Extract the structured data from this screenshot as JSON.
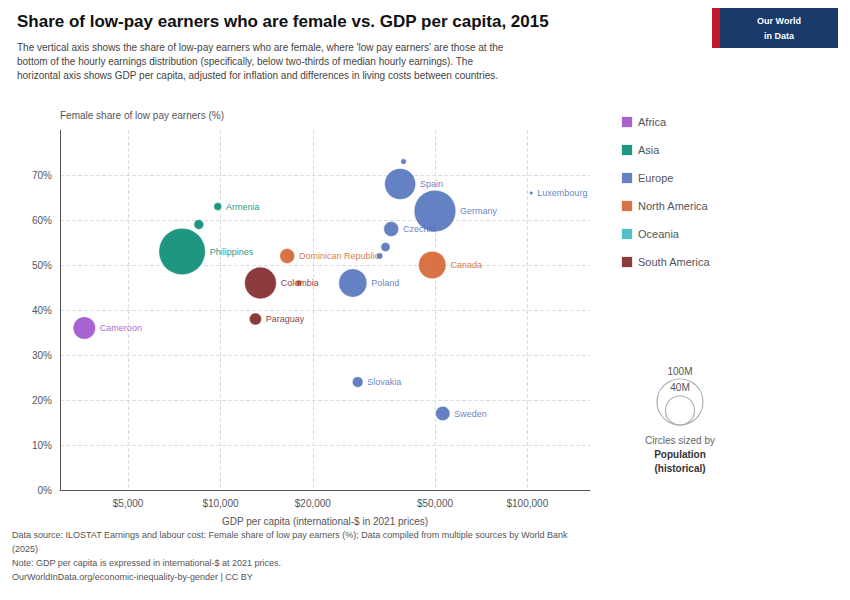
{
  "chart_data": {
    "type": "scatter",
    "title": "Share of low-pay earners who are female vs. GDP per capita, 2015",
    "subtitle": [
      "The vertical axis shows the share of low-pay earners who are female, where 'low pay earners' are those at the",
      "bottom of the hourly earnings distribution (specifically, below two-thirds of median hourly earnings). The",
      "horizontal axis shows GDP per capita, adjusted for inflation and differences in living costs between countries."
    ],
    "xlabel": "GDP per capita (international-$ in 2021 prices)",
    "ylabel": "Female share of low pay earners (%)",
    "footnotes": [
      "Data source: ILOSTAT Earnings and labour cost: Female share of low pay earners (%); Data compiled from multiple sources by World Bank",
      "(2025)",
      "Note: GDP per capita is expressed in international-$ at 2021 prices.",
      "OurWorldInData.org/economic-inequality-by-gender | CC BY"
    ],
    "log": "x",
    "grid": true,
    "legend": "right",
    "xlim": [
      3000,
      160000
    ],
    "xticks": [
      {
        "value": 5000,
        "label": "$5,000"
      },
      {
        "value": 10000,
        "label": "$10,000"
      },
      {
        "value": 20000,
        "label": "$20,000"
      },
      {
        "value": 50000,
        "label": "$50,000"
      },
      {
        "value": 100000,
        "label": "$100,000"
      }
    ],
    "ylim": [
      0,
      80
    ],
    "yticks": [
      {
        "value": 0,
        "label": "0%"
      },
      {
        "value": 10,
        "label": "10%"
      },
      {
        "value": 20,
        "label": "20%"
      },
      {
        "value": 30,
        "label": "30%"
      },
      {
        "value": 40,
        "label": "40%"
      },
      {
        "value": 50,
        "label": "50%"
      },
      {
        "value": 60,
        "label": "60%"
      },
      {
        "value": 70,
        "label": "70%"
      }
    ],
    "series": [
      {
        "name": "Africa",
        "color": "#9b4dca",
        "x": [
          3600
        ],
        "values": [
          36
        ],
        "sizes": [
          24000000
        ],
        "labels": [
          "Cameroon"
        ]
      },
      {
        "name": "Asia",
        "color": "#00896e",
        "x": [
          9800,
          7500,
          8500
        ],
        "values": [
          63,
          53,
          59
        ],
        "sizes": [
          3000000,
          102000000,
          4500000
        ],
        "labels": [
          "Armenia",
          "Philippines",
          null
        ]
      },
      {
        "name": "Europe",
        "color": "#4e6fbc",
        "x": [
          27000,
          28000,
          38500,
          36000,
          50000,
          53000,
          103000,
          39500,
          34500,
          33000
        ],
        "values": [
          46,
          24,
          68,
          58,
          62,
          17,
          66,
          73,
          54,
          52
        ],
        "sizes": [
          38000000,
          5400000,
          46000000,
          10600000,
          82000000,
          9900000,
          580000,
          1500000,
          4000000,
          2000000
        ],
        "labels": [
          "Poland",
          "Slovakia",
          "Spain",
          "Czechia",
          "Germany",
          "Sweden",
          "Luxembourg",
          null,
          null,
          null
        ]
      },
      {
        "name": "North America",
        "color": "#d45f2a",
        "x": [
          16500,
          49000,
          18000
        ],
        "values": [
          52,
          50,
          46
        ],
        "sizes": [
          10500000,
          36000000,
          2000000
        ],
        "labels": [
          "Dominican Republic",
          "Canada",
          null
        ]
      },
      {
        "name": "Oceania",
        "color": "#3ab5c0",
        "x": [],
        "values": [],
        "sizes": [],
        "labels": []
      },
      {
        "name": "South America",
        "color": "#7b2020",
        "x": [
          13500,
          13000
        ],
        "values": [
          46,
          38
        ],
        "sizes": [
          48000000,
          7000000
        ],
        "labels": [
          "Colombia",
          "Paraguay"
        ]
      }
    ],
    "size_legend": {
      "values": [
        100000000,
        40000000
      ],
      "labels": [
        "100M",
        "40M"
      ],
      "title": [
        "Circles sized by",
        "Population",
        "(historical)"
      ]
    },
    "logo": {
      "lines": [
        "Our World",
        "in Data"
      ],
      "colors": [
        "#1a3a6b",
        "#c0172b"
      ]
    }
  }
}
